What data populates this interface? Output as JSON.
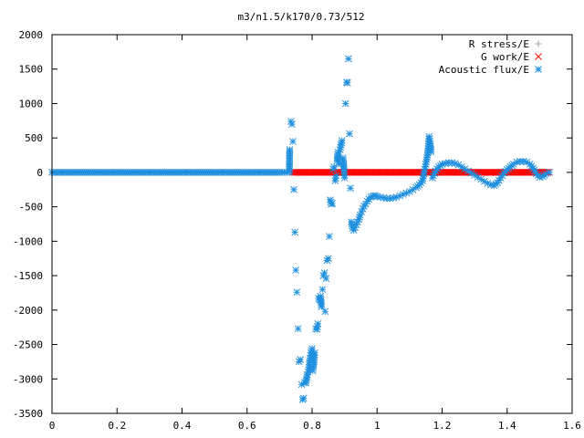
{
  "chart_data": {
    "type": "scatter",
    "title": "m3/n1.5/k170/0.73/512",
    "xlabel": "",
    "ylabel": "",
    "xlim": [
      0,
      1.6
    ],
    "ylim": [
      -3500,
      2000
    ],
    "x_ticks": [
      0,
      0.2,
      0.4,
      0.6,
      0.8,
      1,
      1.2,
      1.4,
      1.6
    ],
    "x_tick_labels": [
      "0",
      "0.2",
      "0.4",
      "0.6",
      "0.8",
      "1",
      "1.2",
      "1.4",
      "1.6"
    ],
    "y_ticks": [
      2000,
      1500,
      1000,
      500,
      0,
      -500,
      -1000,
      -1500,
      -2000,
      -2500,
      -3000,
      -3500
    ],
    "y_tick_labels": [
      "2000",
      "1500",
      "1000",
      "500",
      "0",
      "-500",
      "-1000",
      "-1500",
      "-2000",
      "-2500",
      "-3000",
      "-3500"
    ],
    "grid": false,
    "legend_position": "top-right",
    "series": [
      {
        "name": "R stress/E",
        "marker": "plus",
        "color": "#a0a0a4",
        "x_range": [
          0.74,
          1.53
        ],
        "values_description_constant": 0
      },
      {
        "name": "G work/E",
        "marker": "cross",
        "color": "#ff0000",
        "x_range": [
          0.74,
          1.53
        ],
        "values_description_constant": 0
      },
      {
        "name": "Acoustic flux/E",
        "marker": "star",
        "color": "#1f8fdf",
        "points": [
          [
            0.0,
            0
          ],
          [
            0.05,
            0
          ],
          [
            0.1,
            0
          ],
          [
            0.15,
            0
          ],
          [
            0.2,
            0
          ],
          [
            0.25,
            0
          ],
          [
            0.3,
            0
          ],
          [
            0.35,
            0
          ],
          [
            0.4,
            0
          ],
          [
            0.45,
            0
          ],
          [
            0.5,
            0
          ],
          [
            0.55,
            0
          ],
          [
            0.6,
            0
          ],
          [
            0.65,
            0
          ],
          [
            0.7,
            0
          ],
          [
            0.73,
            0
          ],
          [
            0.731,
            330
          ],
          [
            0.735,
            740
          ],
          [
            0.738,
            700
          ],
          [
            0.741,
            450
          ],
          [
            0.744,
            -250
          ],
          [
            0.747,
            -870
          ],
          [
            0.75,
            -1420
          ],
          [
            0.753,
            -1740
          ],
          [
            0.757,
            -2270
          ],
          [
            0.76,
            -2750
          ],
          [
            0.764,
            -2720
          ],
          [
            0.768,
            -3080
          ],
          [
            0.771,
            -3300
          ],
          [
            0.774,
            -3280
          ],
          [
            0.777,
            -3050
          ],
          [
            0.781,
            -3060
          ],
          [
            0.785,
            -2940
          ],
          [
            0.788,
            -2900
          ],
          [
            0.791,
            -2830
          ],
          [
            0.794,
            -2700
          ],
          [
            0.797,
            -2620
          ],
          [
            0.8,
            -2560
          ],
          [
            0.802,
            -2880
          ],
          [
            0.805,
            -2790
          ],
          [
            0.808,
            -2620
          ],
          [
            0.811,
            -2270
          ],
          [
            0.815,
            -2280
          ],
          [
            0.818,
            -2200
          ],
          [
            0.82,
            -1830
          ],
          [
            0.823,
            -1850
          ],
          [
            0.826,
            -1800
          ],
          [
            0.829,
            -1950
          ],
          [
            0.832,
            -1700
          ],
          [
            0.835,
            -1500
          ],
          [
            0.838,
            -1460
          ],
          [
            0.84,
            -2020
          ],
          [
            0.843,
            -1540
          ],
          [
            0.846,
            -1280
          ],
          [
            0.85,
            -1250
          ],
          [
            0.853,
            -930
          ],
          [
            0.856,
            -400
          ],
          [
            0.859,
            -460
          ],
          [
            0.862,
            -450
          ],
          [
            0.865,
            50
          ],
          [
            0.868,
            80
          ],
          [
            0.871,
            -120
          ],
          [
            0.874,
            -50
          ],
          [
            0.877,
            170
          ],
          [
            0.88,
            290
          ],
          [
            0.883,
            120
          ],
          [
            0.886,
            330
          ],
          [
            0.889,
            400
          ],
          [
            0.892,
            460
          ],
          [
            0.895,
            210
          ],
          [
            0.898,
            60
          ],
          [
            0.9,
            -80
          ],
          [
            0.903,
            1000
          ],
          [
            0.906,
            1310
          ],
          [
            0.909,
            1300
          ],
          [
            0.912,
            1650
          ],
          [
            0.915,
            560
          ],
          [
            0.918,
            -230
          ],
          [
            0.921,
            -720
          ],
          [
            0.925,
            -810
          ],
          [
            0.928,
            -840
          ],
          [
            0.932,
            -800
          ],
          [
            0.936,
            -760
          ],
          [
            0.94,
            -720
          ],
          [
            0.944,
            -680
          ],
          [
            0.948,
            -620
          ],
          [
            0.952,
            -570
          ],
          [
            0.956,
            -530
          ],
          [
            0.96,
            -490
          ],
          [
            0.965,
            -460
          ],
          [
            0.97,
            -420
          ],
          [
            0.975,
            -390
          ],
          [
            0.98,
            -360
          ],
          [
            0.985,
            -350
          ],
          [
            0.99,
            -340
          ],
          [
            0.995,
            -340
          ],
          [
            1.0,
            -350
          ],
          [
            1.01,
            -360
          ],
          [
            1.02,
            -370
          ],
          [
            1.03,
            -380
          ],
          [
            1.04,
            -380
          ],
          [
            1.05,
            -370
          ],
          [
            1.06,
            -360
          ],
          [
            1.07,
            -340
          ],
          [
            1.08,
            -320
          ],
          [
            1.09,
            -300
          ],
          [
            1.1,
            -280
          ],
          [
            1.11,
            -250
          ],
          [
            1.12,
            -220
          ],
          [
            1.13,
            -180
          ],
          [
            1.14,
            -120
          ],
          [
            1.145,
            10
          ],
          [
            1.15,
            120
          ],
          [
            1.155,
            250
          ],
          [
            1.158,
            380
          ],
          [
            1.16,
            520
          ],
          [
            1.163,
            420
          ],
          [
            1.166,
            300
          ],
          [
            1.17,
            -80
          ],
          [
            1.18,
            20
          ],
          [
            1.19,
            80
          ],
          [
            1.2,
            120
          ],
          [
            1.21,
            130
          ],
          [
            1.22,
            140
          ],
          [
            1.23,
            140
          ],
          [
            1.24,
            130
          ],
          [
            1.25,
            110
          ],
          [
            1.26,
            80
          ],
          [
            1.27,
            50
          ],
          [
            1.28,
            20
          ],
          [
            1.29,
            -10
          ],
          [
            1.3,
            -40
          ],
          [
            1.31,
            -70
          ],
          [
            1.32,
            -100
          ],
          [
            1.33,
            -130
          ],
          [
            1.34,
            -160
          ],
          [
            1.35,
            -180
          ],
          [
            1.36,
            -190
          ],
          [
            1.37,
            -150
          ],
          [
            1.38,
            -80
          ],
          [
            1.39,
            -10
          ],
          [
            1.4,
            40
          ],
          [
            1.41,
            80
          ],
          [
            1.42,
            120
          ],
          [
            1.43,
            150
          ],
          [
            1.44,
            160
          ],
          [
            1.45,
            160
          ],
          [
            1.46,
            150
          ],
          [
            1.47,
            120
          ],
          [
            1.48,
            60
          ],
          [
            1.49,
            -20
          ],
          [
            1.5,
            -70
          ],
          [
            1.51,
            -60
          ],
          [
            1.52,
            -20
          ],
          [
            1.53,
            0
          ]
        ]
      }
    ]
  }
}
